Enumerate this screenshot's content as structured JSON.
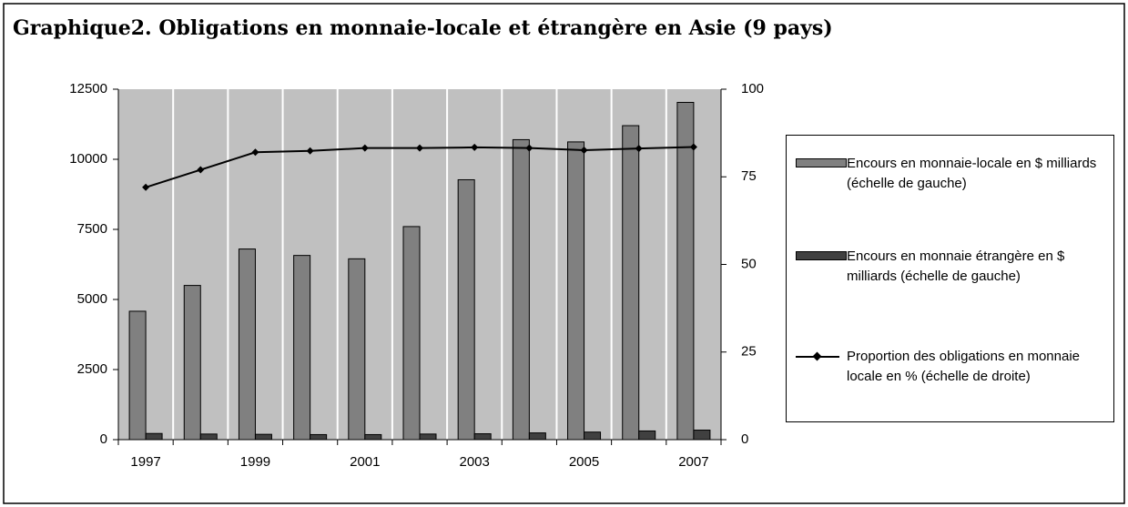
{
  "chart_data": {
    "type": "bar-line",
    "title": "Graphique2. Obligations en monnaie-locale et étrangère en Asie (9 pays)",
    "categories": [
      "1997",
      null,
      "1999",
      null,
      "2001",
      null,
      "2003",
      null,
      "2005",
      null,
      "2007"
    ],
    "series": [
      {
        "name": "Encours en monnaie-locale en $ milliards (échelle de gauche)",
        "type": "bar",
        "color": "#808080",
        "values": [
          4580,
          5500,
          6800,
          6570,
          6450,
          7600,
          9270,
          10700,
          10620,
          11200,
          12030
        ]
      },
      {
        "name": "Encours en monnaie étrangère en $ milliards (échelle de gauche)",
        "type": "bar",
        "color": "#404040",
        "values": [
          220,
          200,
          190,
          180,
          180,
          200,
          210,
          240,
          270,
          310,
          340
        ]
      },
      {
        "name": "Proportion des obligations en monnaie locale en % (échelle de droite)",
        "type": "line",
        "color": "#000000",
        "axis": "y2",
        "values": [
          72,
          77,
          82,
          82.4,
          83.2,
          83.2,
          83.4,
          83.2,
          82.6,
          83.1,
          83.5
        ]
      }
    ],
    "ylim": [
      0,
      12500
    ],
    "yticks": [
      0,
      2500,
      5000,
      7500,
      10000,
      12500
    ],
    "y2lim": [
      0,
      100
    ],
    "y2ticks": [
      0,
      25,
      50,
      75,
      100
    ],
    "grid": true,
    "legend": "right"
  }
}
